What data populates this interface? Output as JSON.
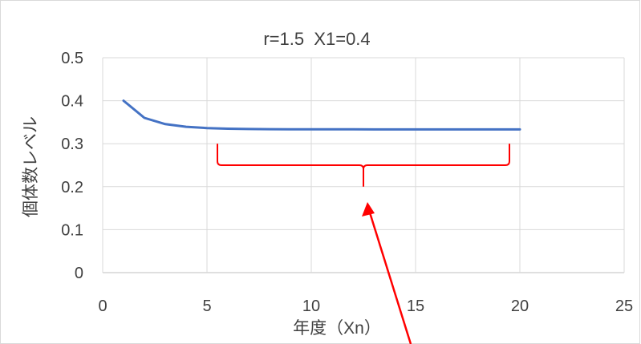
{
  "chart_data": {
    "type": "line",
    "title": "r=1.5  X1=0.4",
    "xlabel": "年度（Xn）",
    "ylabel": "個体数レベル",
    "xlim": [
      0,
      25
    ],
    "ylim": [
      0,
      0.5
    ],
    "xticks": [
      0,
      5,
      10,
      15,
      20,
      25
    ],
    "yticks": [
      0,
      0.1,
      0.2,
      0.3,
      0.4,
      0.5
    ],
    "xtick_labels": [
      "0",
      "5",
      "10",
      "15",
      "20",
      "25"
    ],
    "ytick_labels": [
      "0",
      "0.1",
      "0.2",
      "0.3",
      "0.4",
      "0.5"
    ],
    "grid": true,
    "legend": "none",
    "series": [
      {
        "color": "#4472c4",
        "x": [
          1,
          2,
          3,
          4,
          5,
          6,
          7,
          8,
          9,
          10,
          11,
          12,
          13,
          14,
          15,
          16,
          17,
          18,
          19,
          20
        ],
        "values": [
          0.4,
          0.36,
          0.3456,
          0.3393,
          0.3363,
          0.3348,
          0.3341,
          0.3337,
          0.3335,
          0.3334,
          0.3334,
          0.3334,
          0.3333,
          0.3333,
          0.3333,
          0.3333,
          0.3333,
          0.3333,
          0.3333,
          0.3333
        ]
      }
    ],
    "annotations": {
      "brace": {
        "x_from": 5.5,
        "x_to": 19.5,
        "y_top": 0.3,
        "y_mid": 0.25,
        "y_tip": 0.2,
        "color": "#ff0000"
      },
      "arrow": {
        "color": "#ff0000"
      }
    }
  }
}
